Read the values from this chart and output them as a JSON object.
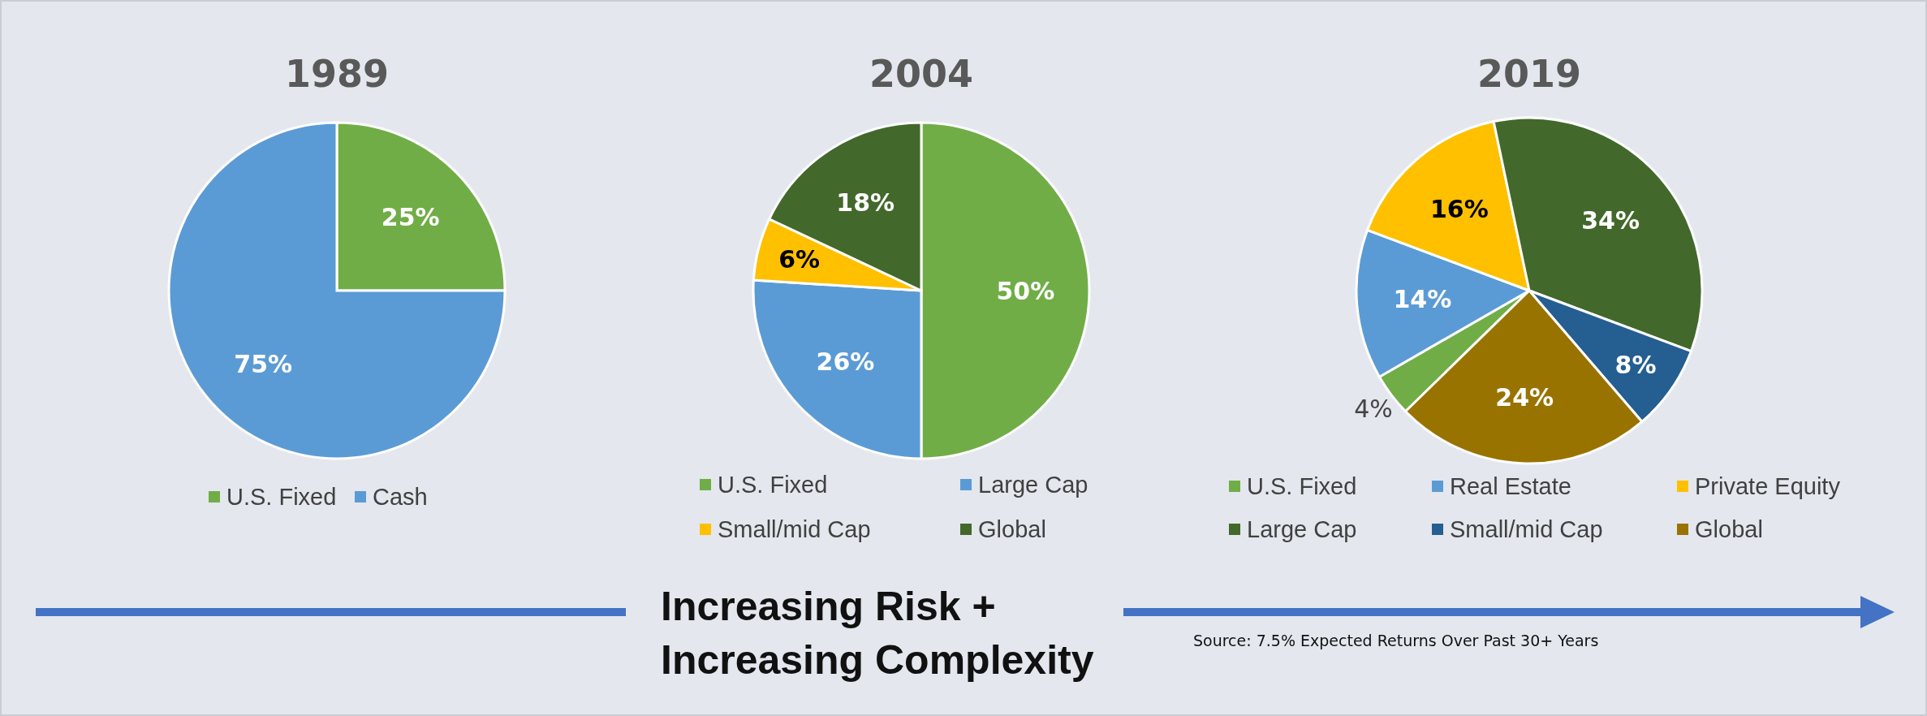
{
  "chart_data": [
    {
      "type": "pie",
      "title": "1989",
      "categories": [
        "U.S. Fixed",
        "Cash"
      ],
      "values": [
        25,
        75
      ],
      "colors": [
        "#70ad47",
        "#5b9bd5"
      ],
      "value_labels": [
        "25%",
        "75%"
      ],
      "legend": "bottom"
    },
    {
      "type": "pie",
      "title": "2004",
      "categories": [
        "U.S. Fixed",
        "Large Cap",
        "Small/mid Cap",
        "Global"
      ],
      "values": [
        50,
        26,
        6,
        18
      ],
      "colors": [
        "#70ad47",
        "#5b9bd5",
        "#ffc000",
        "#43682b"
      ],
      "value_labels": [
        "50%",
        "26%",
        "6%",
        "18%"
      ],
      "legend": "bottom"
    },
    {
      "type": "pie",
      "title": "2019",
      "categories": [
        "U.S. Fixed",
        "Real Estate",
        "Private Equity",
        "Large Cap",
        "Small/mid Cap",
        "Global"
      ],
      "values": [
        4,
        14,
        16,
        34,
        8,
        24
      ],
      "colors": [
        "#70ad47",
        "#5b9bd5",
        "#ffc000",
        "#43682b",
        "#255e91",
        "#997300"
      ],
      "value_labels": [
        "4%",
        "14%",
        "16%",
        "34%",
        "8%",
        "24%"
      ],
      "legend": "bottom",
      "annotations": [
        "Increasing Risk + Increasing Complexity",
        "Source: 7.5% Expected Returns Over Past 30+ Years"
      ]
    }
  ]
}
